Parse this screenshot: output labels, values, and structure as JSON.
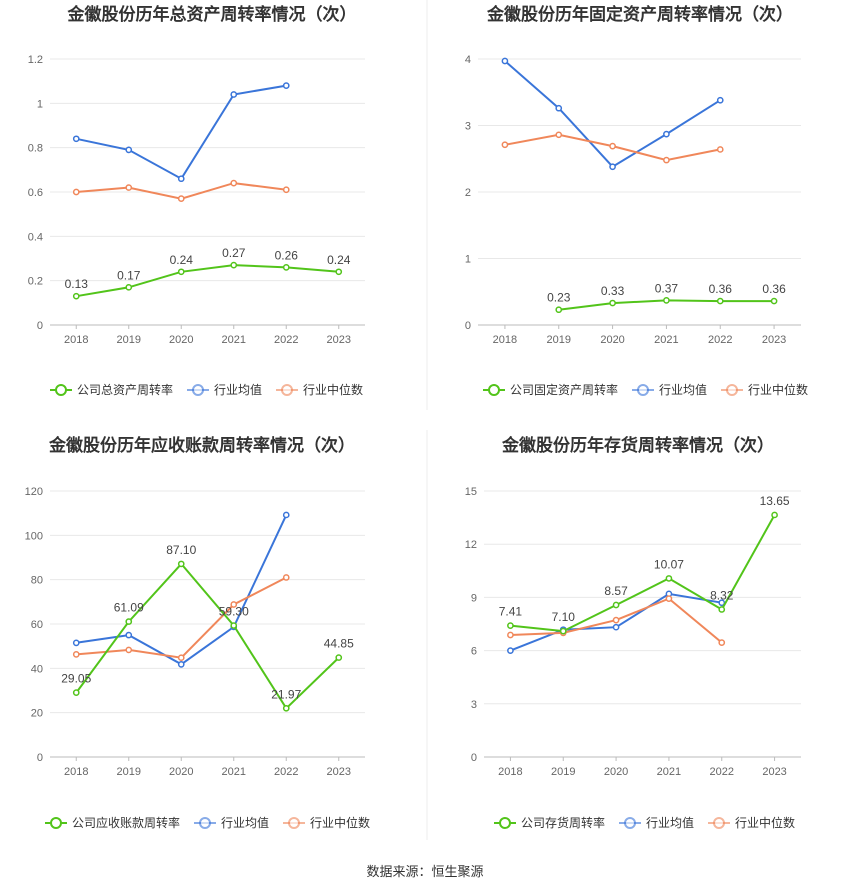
{
  "source_text": "数据来源：恒生聚源",
  "chart_data": [
    {
      "type": "line",
      "title": "金徽股份历年总资产周转率情况（次）",
      "categories": [
        "2018",
        "2019",
        "2020",
        "2021",
        "2022",
        "2023"
      ],
      "ylim": [
        0,
        1.2
      ],
      "yticks": [
        "0",
        "0.2",
        "0.4",
        "0.6",
        "0.8",
        "1",
        "1.2"
      ],
      "yticks_values": [
        0,
        0.2,
        0.4,
        0.6,
        0.8,
        1.0,
        1.2
      ],
      "grid": true,
      "legend_position": "bottom",
      "series": [
        {
          "name": "公司总资产周转率",
          "color": "#52c41a",
          "values": [
            0.13,
            0.17,
            0.24,
            0.27,
            0.26,
            0.24
          ],
          "labels": [
            "0.13",
            "0.17",
            "0.24",
            "0.27",
            "0.26",
            "0.24"
          ]
        },
        {
          "name": "行业均值",
          "color": "#3a75d9",
          "values": [
            0.84,
            0.79,
            0.66,
            1.04,
            1.08,
            null
          ]
        },
        {
          "name": "行业中位数",
          "color": "#f0875a",
          "values": [
            0.6,
            0.62,
            0.57,
            0.64,
            0.61,
            null
          ]
        }
      ]
    },
    {
      "type": "line",
      "title": "金徽股份历年固定资产周转率情况（次）",
      "categories": [
        "2018",
        "2019",
        "2020",
        "2021",
        "2022",
        "2023"
      ],
      "ylim": [
        0,
        4
      ],
      "yticks": [
        "0",
        "1",
        "2",
        "3",
        "4"
      ],
      "yticks_values": [
        0,
        1,
        2,
        3,
        4
      ],
      "grid": true,
      "legend_position": "bottom",
      "series": [
        {
          "name": "公司固定资产周转率",
          "color": "#52c41a",
          "values": [
            null,
            0.23,
            0.33,
            0.37,
            0.36,
            0.36
          ],
          "labels": [
            null,
            "0.23",
            "0.33",
            "0.37",
            "0.36",
            "0.36"
          ]
        },
        {
          "name": "行业均值",
          "color": "#3a75d9",
          "values": [
            3.97,
            3.26,
            2.38,
            2.87,
            3.38,
            null
          ]
        },
        {
          "name": "行业中位数",
          "color": "#f0875a",
          "values": [
            2.71,
            2.86,
            2.69,
            2.48,
            2.64,
            null
          ]
        }
      ]
    },
    {
      "type": "line",
      "title": "金徽股份历年应收账款周转率情况（次）",
      "categories": [
        "2018",
        "2019",
        "2020",
        "2021",
        "2022",
        "2023"
      ],
      "ylim": [
        0,
        120
      ],
      "yticks": [
        "0",
        "20",
        "40",
        "60",
        "80",
        "100",
        "120"
      ],
      "yticks_values": [
        0,
        20,
        40,
        60,
        80,
        100,
        120
      ],
      "grid": true,
      "legend_position": "bottom",
      "series": [
        {
          "name": "公司应收账款周转率",
          "color": "#52c41a",
          "values": [
            29.05,
            61.09,
            87.1,
            59.3,
            21.97,
            44.85
          ],
          "labels": [
            "29.05",
            "61.09",
            "87.10",
            "59.30",
            "21.97",
            "44.85"
          ]
        },
        {
          "name": "行业均值",
          "color": "#3a75d9",
          "values": [
            51.5,
            55.0,
            41.8,
            58.7,
            109.2,
            null
          ]
        },
        {
          "name": "行业中位数",
          "color": "#f0875a",
          "values": [
            46.3,
            48.3,
            44.8,
            68.8,
            81.0,
            null
          ]
        }
      ]
    },
    {
      "type": "line",
      "title": "金徽股份历年存货周转率情况（次）",
      "categories": [
        "2018",
        "2019",
        "2020",
        "2021",
        "2022",
        "2023"
      ],
      "ylim": [
        0,
        15
      ],
      "yticks": [
        "0",
        "3",
        "6",
        "9",
        "12",
        "15"
      ],
      "yticks_values": [
        0,
        3,
        6,
        9,
        12,
        15
      ],
      "grid": true,
      "legend_position": "bottom",
      "series": [
        {
          "name": "公司存货周转率",
          "color": "#52c41a",
          "values": [
            7.41,
            7.1,
            8.57,
            10.07,
            8.32,
            13.65
          ],
          "labels": [
            "7.41",
            "7.10",
            "8.57",
            "10.07",
            "8.32",
            "13.65"
          ]
        },
        {
          "name": "行业均值",
          "color": "#3a75d9",
          "values": [
            6.0,
            7.18,
            7.32,
            9.2,
            8.7,
            null
          ]
        },
        {
          "name": "行业中位数",
          "color": "#f0875a",
          "values": [
            6.88,
            7.0,
            7.72,
            8.93,
            6.45,
            null
          ]
        }
      ]
    }
  ]
}
